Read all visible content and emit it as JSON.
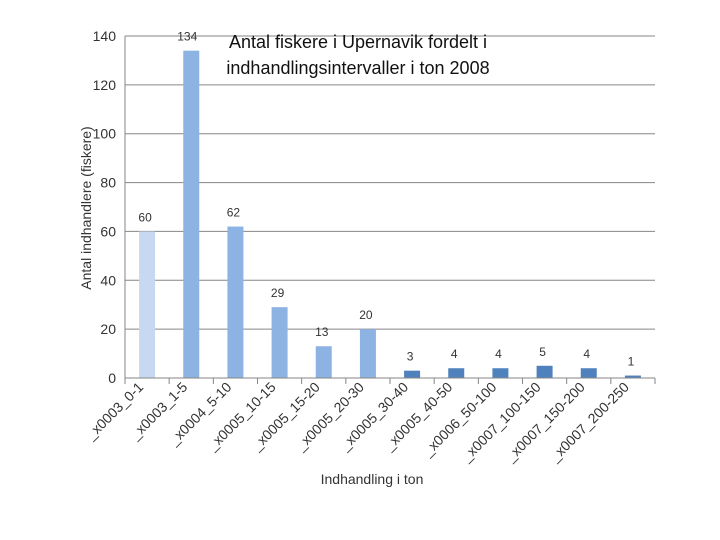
{
  "chart_data": {
    "type": "bar",
    "title": "Antal fiskere i Upernavik fordelt i indhandlingsintervaller i ton 2008",
    "title_lines": [
      "Antal fiskere i Upernavik fordelt i",
      "indhandlingsintervaller i ton 2008"
    ],
    "xlabel": "Indhandling i ton",
    "ylabel": "Antal indhandlere (fiskere)",
    "ylim": [
      0,
      140
    ],
    "yticks": [
      0,
      20,
      40,
      60,
      80,
      100,
      120,
      140
    ],
    "categories": [
      "_x0003_0-1",
      "_x0003_1-5",
      "_x0004_5-10",
      "_x0005_10-15",
      "_x0005_15-20",
      "_x0005_20-30",
      "_x0005_30-40",
      "_x0005_40-50",
      "_x0006_50-100",
      "_x0007_100-150",
      "_x0007_150-200",
      "_x0007_200-250"
    ],
    "values": [
      60,
      134,
      62,
      29,
      13,
      20,
      3,
      4,
      4,
      5,
      4,
      1
    ],
    "data_labels": [
      "60",
      "134",
      "62",
      "29",
      "13",
      "20",
      "3",
      "4",
      "4",
      "5",
      "4",
      "1"
    ],
    "bar_colors": [
      "#c6d9f1",
      "#8db3e2",
      "#8db3e2",
      "#8db3e2",
      "#8db3e2",
      "#8db3e2",
      "#4f81bd",
      "#4f81bd",
      "#4f81bd",
      "#4f81bd",
      "#4f81bd",
      "#4f81bd"
    ],
    "grid": true,
    "legend": "none"
  }
}
